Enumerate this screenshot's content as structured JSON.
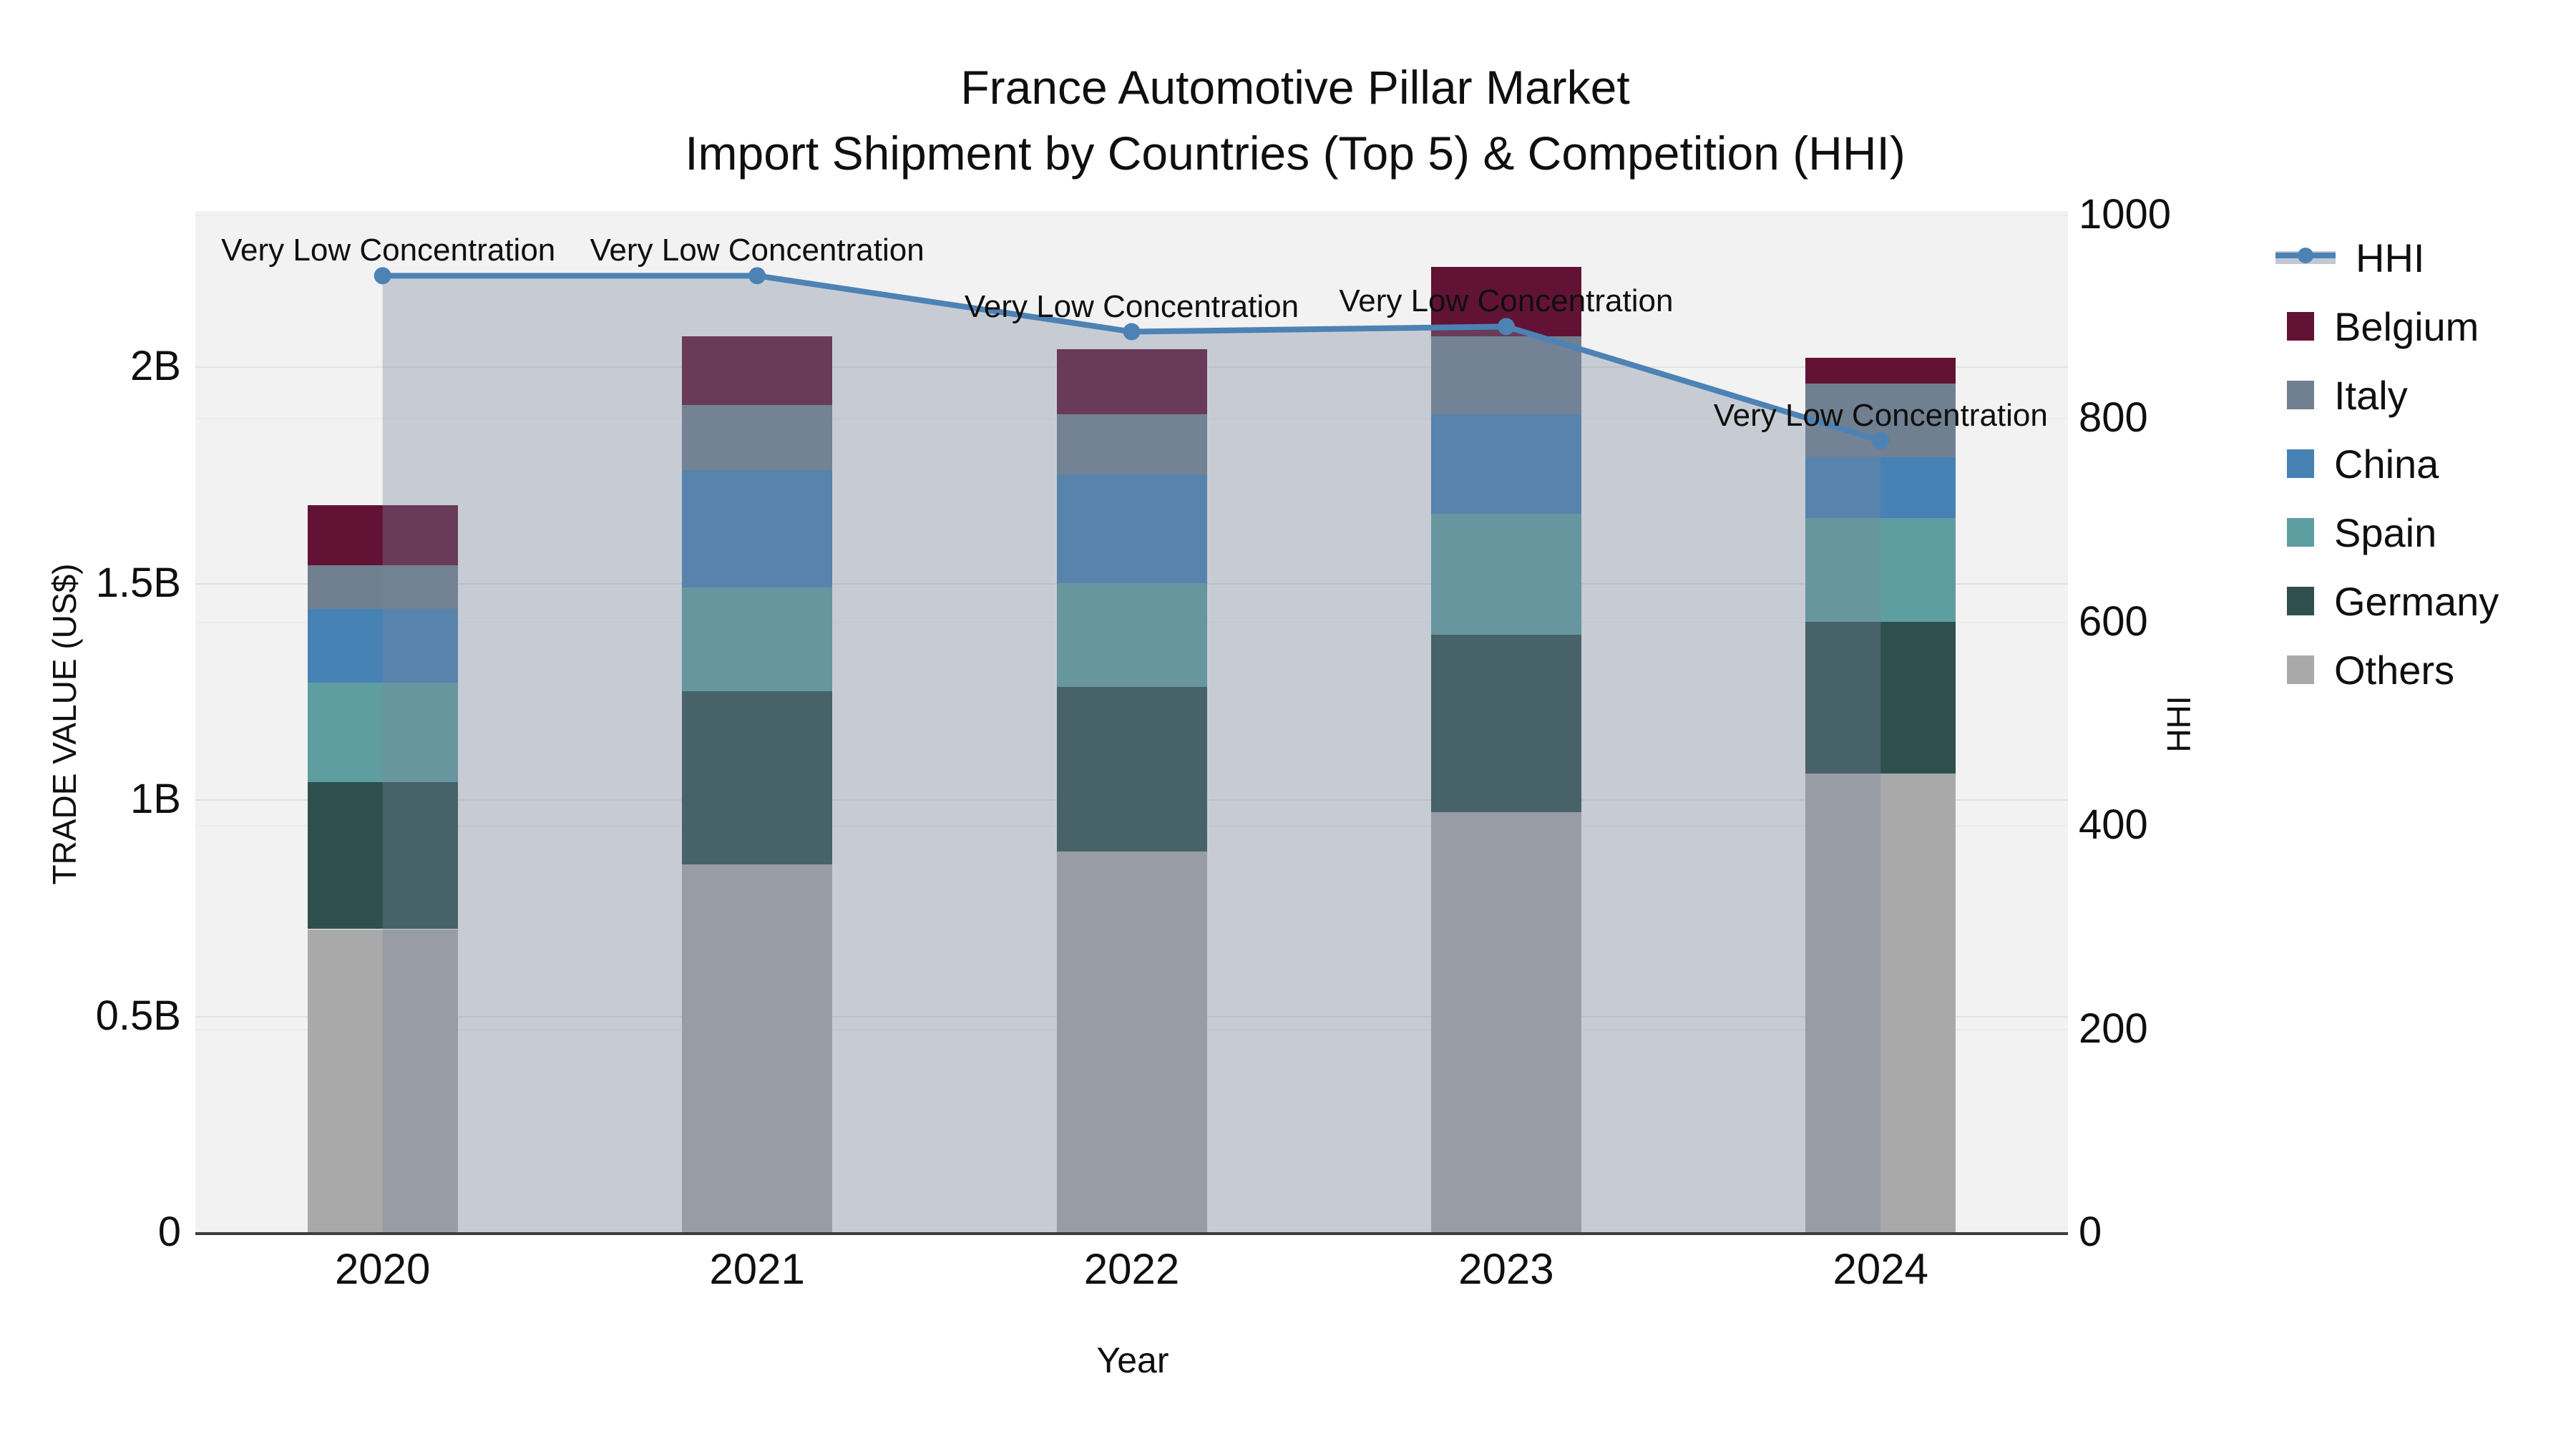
{
  "title": {
    "line1": "France Automotive Pillar Market",
    "line2": "Import Shipment by Countries (Top 5) & Competition (HHI)"
  },
  "axes": {
    "left": {
      "title": "TRADE VALUE (US$)",
      "tick_labels": [
        "0",
        "0.5B",
        "1B",
        "1.5B",
        "2B"
      ],
      "tick_values": [
        0,
        0.5,
        1,
        1.5,
        2
      ],
      "unit": "billion US$"
    },
    "right": {
      "title": "HHI",
      "tick_labels": [
        "0",
        "200",
        "400",
        "600",
        "800",
        "1000"
      ],
      "tick_values": [
        0,
        200,
        400,
        600,
        800,
        1000
      ]
    },
    "x": {
      "title": "Year",
      "categories": [
        "2020",
        "2021",
        "2022",
        "2023",
        "2024"
      ]
    }
  },
  "legend": {
    "items": [
      {
        "label": "HHI",
        "type": "line",
        "color": "#4d82b4"
      },
      {
        "label": "Belgium",
        "type": "swatch",
        "color": "#621335"
      },
      {
        "label": "Italy",
        "type": "swatch",
        "color": "#708090"
      },
      {
        "label": "China",
        "type": "swatch",
        "color": "#4682B4"
      },
      {
        "label": "Spain",
        "type": "swatch",
        "color": "#5F9EA0"
      },
      {
        "label": "Germany",
        "type": "swatch",
        "color": "#2F4F4F"
      },
      {
        "label": "Others",
        "type": "swatch",
        "color": "#A9A9A9"
      }
    ]
  },
  "chart_data": {
    "type": "bar+line",
    "categories": [
      "2020",
      "2021",
      "2022",
      "2023",
      "2024"
    ],
    "bar_unit": "billion US$ (trade value)",
    "stack_order_bottom_to_top": [
      "Others",
      "Germany",
      "Spain",
      "China",
      "Italy",
      "Belgium"
    ],
    "series": [
      {
        "name": "Others",
        "color": "#A9A9A9",
        "values": [
          0.7,
          0.85,
          0.88,
          0.97,
          1.06
        ]
      },
      {
        "name": "Germany",
        "color": "#2F4F4F",
        "values": [
          0.34,
          0.4,
          0.38,
          0.41,
          0.35
        ]
      },
      {
        "name": "Spain",
        "color": "#5F9EA0",
        "values": [
          0.23,
          0.24,
          0.24,
          0.28,
          0.24
        ]
      },
      {
        "name": "China",
        "color": "#4682B4",
        "values": [
          0.17,
          0.27,
          0.25,
          0.23,
          0.14
        ]
      },
      {
        "name": "Italy",
        "color": "#708090",
        "values": [
          0.1,
          0.15,
          0.14,
          0.18,
          0.17
        ]
      },
      {
        "name": "Belgium",
        "color": "#621335",
        "values": [
          0.14,
          0.16,
          0.15,
          0.16,
          0.06
        ]
      }
    ],
    "bar_totals": [
      1.68,
      2.07,
      2.04,
      2.23,
      2.02
    ],
    "line": {
      "name": "HHI",
      "axis": "right",
      "color": "#4d82b4",
      "fill_color": "rgba(119,134,157,0.35)",
      "values": [
        940,
        940,
        885,
        890,
        778
      ]
    },
    "point_annotations": [
      "Very Low Concentration",
      "Very Low Concentration",
      "Very Low Concentration",
      "Very Low Concentration",
      "Very Low Concentration"
    ],
    "ylim_left": [
      0,
      2.36
    ],
    "ylim_right": [
      0,
      1000
    ],
    "grid": true,
    "legend_position": "right"
  }
}
